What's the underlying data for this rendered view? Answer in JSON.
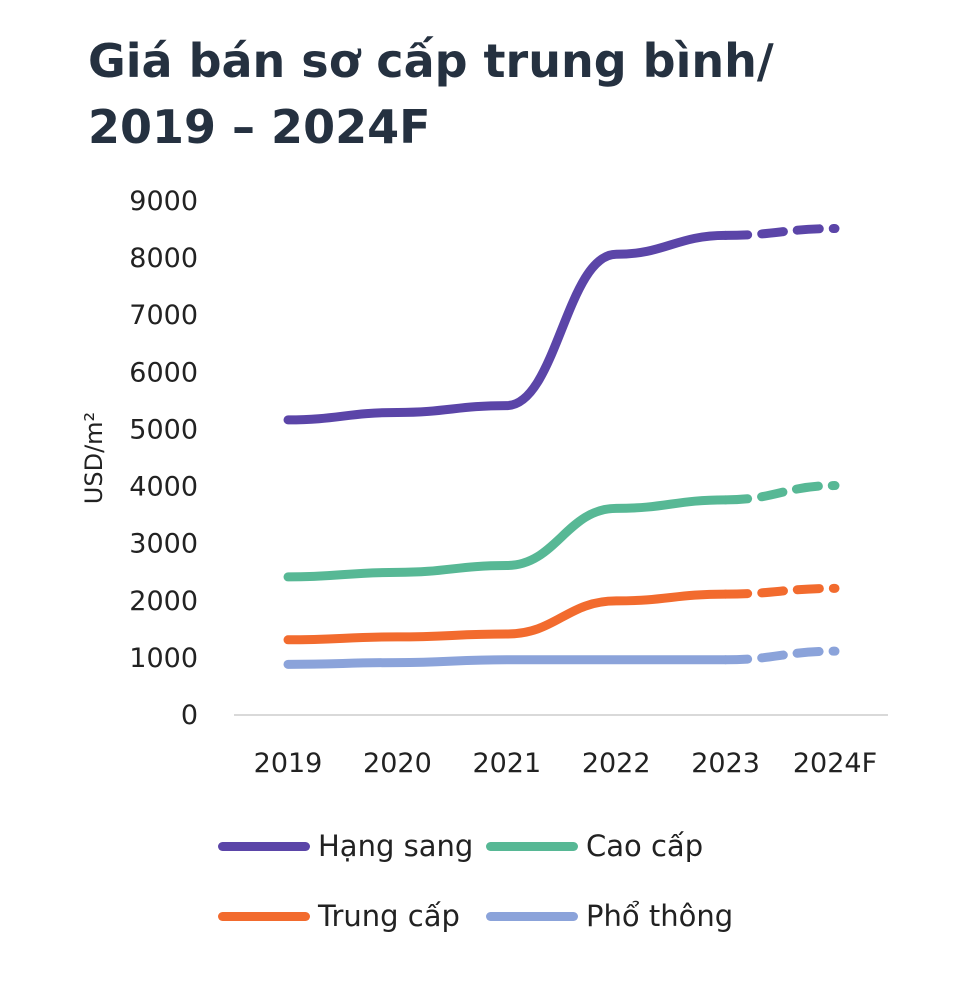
{
  "chart_data": {
    "type": "line",
    "title_lines": [
      "Giá bán sơ cấp trung bình/",
      "2019 – 2024F"
    ],
    "ylabel": "USD/m²",
    "xlabel": "",
    "ylim": [
      0,
      9000
    ],
    "yticks": [
      "0",
      "1000",
      "2000",
      "3000",
      "4000",
      "5000",
      "6000",
      "7000",
      "8000",
      "9000"
    ],
    "categories": [
      "2019",
      "2020",
      "2021",
      "2022",
      "2023",
      "2024F"
    ],
    "forecast_from_index": 4,
    "grid": false,
    "legend_position": "bottom",
    "series": [
      {
        "name": "Hạng sang",
        "color": "#5B45A8",
        "values": [
          5150,
          5280,
          5400,
          8050,
          8380,
          8500
        ]
      },
      {
        "name": "Cao cấp",
        "color": "#57B895",
        "values": [
          2400,
          2480,
          2600,
          3600,
          3750,
          4000
        ]
      },
      {
        "name": "Trung cấp",
        "color": "#F26B2E",
        "values": [
          1300,
          1350,
          1400,
          1980,
          2100,
          2200
        ]
      },
      {
        "name": "Phổ thông",
        "color": "#8BA3DA",
        "values": [
          870,
          900,
          950,
          950,
          950,
          1100
        ]
      }
    ]
  }
}
